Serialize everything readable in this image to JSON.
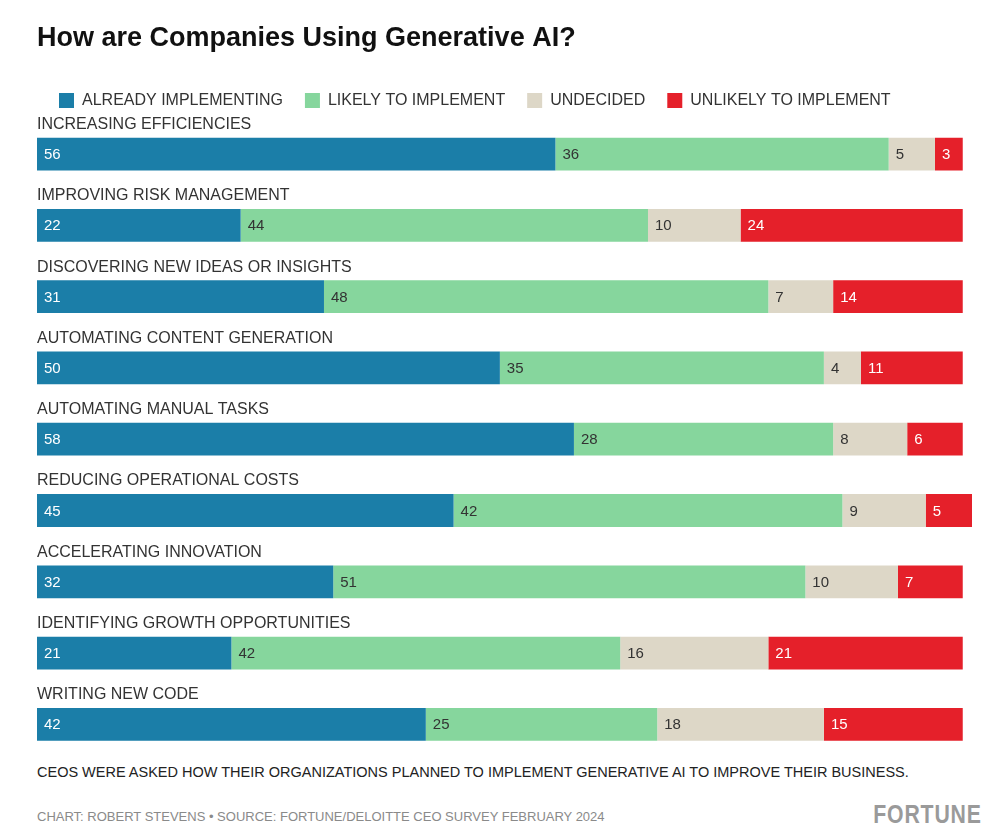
{
  "chart_data": {
    "type": "bar",
    "title": "How are Companies Using Generative AI?",
    "caption": "CEOS WERE ASKED HOW THEIR ORGANIZATIONS PLANNED TO IMPLEMENT GENERATIVE AI TO IMPROVE THEIR BUSINESS.",
    "source": "CHART: ROBERT STEVENS • SOURCE: FORTUNE/DELOITTE CEO SURVEY FEBRUARY 2024",
    "annotations": [
      "FORTUNE"
    ],
    "categories": [
      "INCREASING EFFICIENCIES",
      "IMPROVING RISK MANAGEMENT",
      "DISCOVERING NEW IDEAS OR INSIGHTS",
      "AUTOMATING CONTENT GENERATION",
      "AUTOMATING MANUAL TASKS",
      "REDUCING OPERATIONAL COSTS",
      "ACCELERATING INNOVATION",
      "IDENTIFYING GROWTH OPPORTUNITIES",
      "WRITING NEW CODE"
    ],
    "series": [
      {
        "name": "ALREADY IMPLEMENTING",
        "color": "#1b7ea8",
        "values": [
          56,
          22,
          31,
          50,
          58,
          45,
          32,
          21,
          42
        ]
      },
      {
        "name": "LIKELY TO IMPLEMENT",
        "color": "#86d69d",
        "values": [
          36,
          44,
          48,
          35,
          28,
          42,
          51,
          42,
          25
        ]
      },
      {
        "name": "UNDECIDED",
        "color": "#ddd7c7",
        "values": [
          5,
          10,
          7,
          4,
          8,
          9,
          10,
          16,
          18
        ]
      },
      {
        "name": "UNLIKELY TO IMPLEMENT",
        "color": "#e5202a",
        "values": [
          3,
          24,
          14,
          11,
          6,
          5,
          7,
          21,
          15
        ]
      }
    ],
    "xlim": [
      0,
      101
    ],
    "orientation": "horizontal",
    "stacked": true,
    "data_labels": true,
    "grid": false,
    "legend": "top left",
    "tick_labels": "y"
  }
}
